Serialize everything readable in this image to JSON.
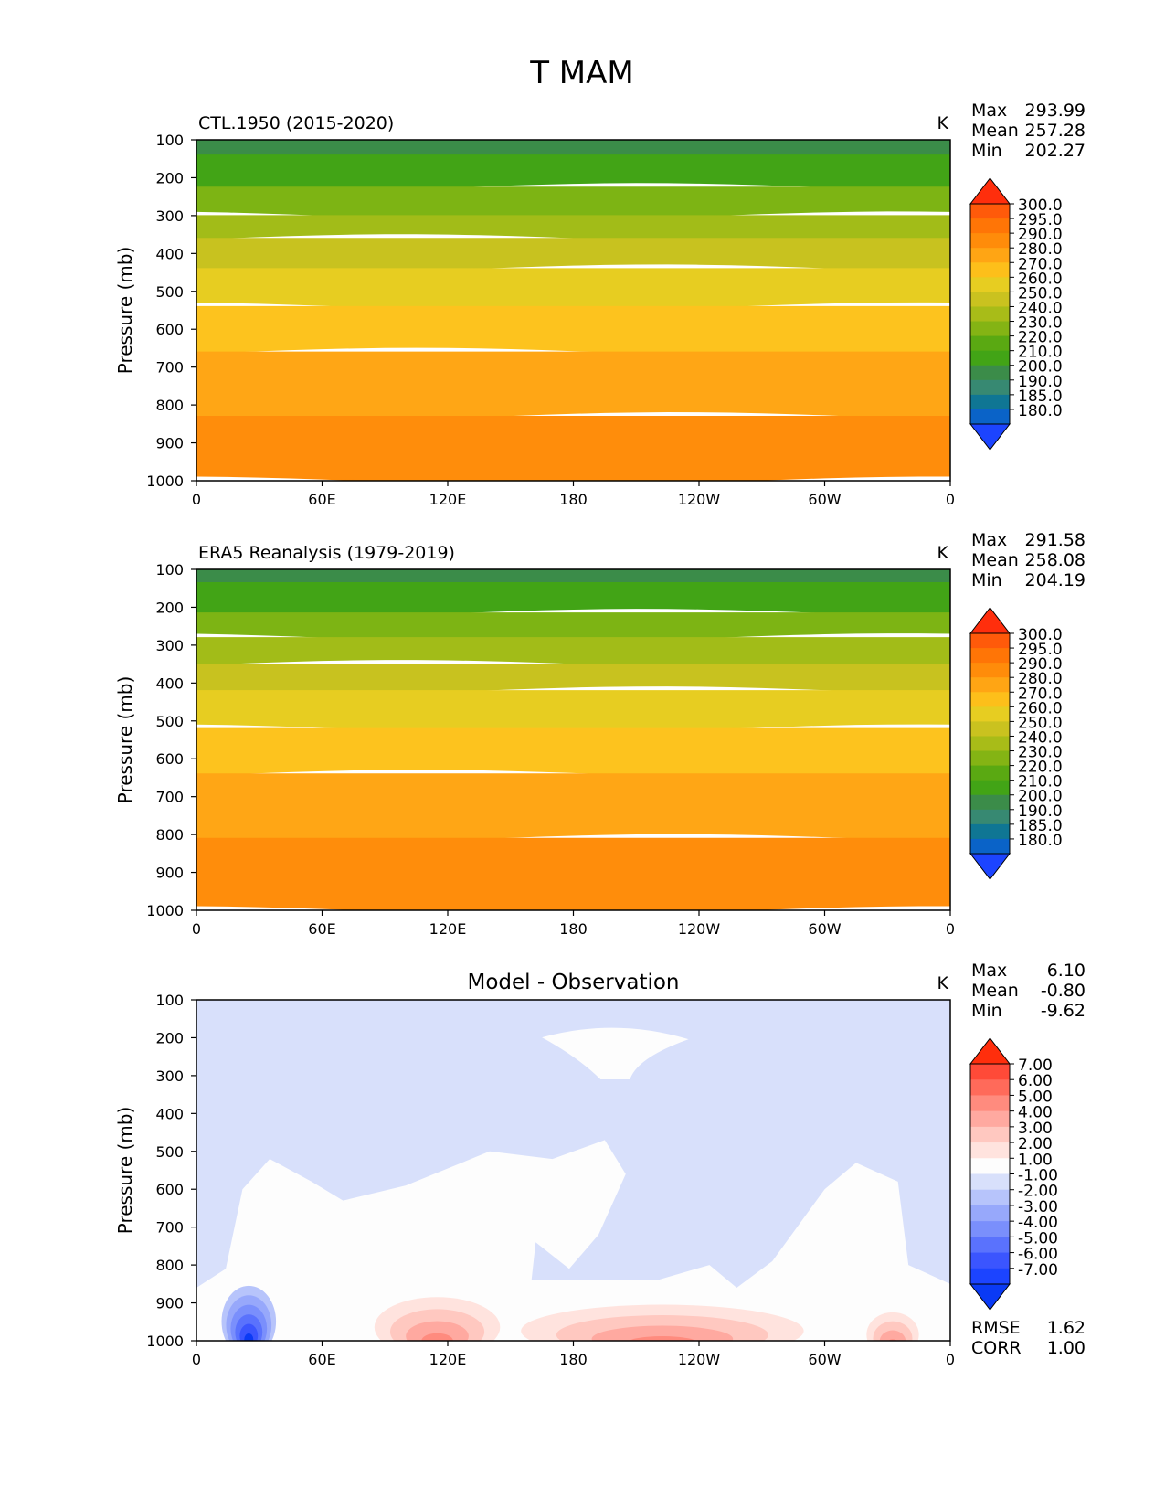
{
  "figure": {
    "title": "T MAM"
  },
  "chart_data": [
    {
      "type": "heatmap",
      "panel": "model",
      "title": "CTL.1950 (2015-2020)",
      "title_align": "left",
      "units": "K",
      "stats": [
        {
          "label": "Max",
          "value": "293.99"
        },
        {
          "label": "Mean",
          "value": "257.28"
        },
        {
          "label": "Min",
          "value": "202.27"
        }
      ],
      "ylabel": "Pressure (mb)",
      "y_ticks": [
        "100",
        "200",
        "300",
        "400",
        "500",
        "600",
        "700",
        "800",
        "900",
        "1000"
      ],
      "x_ticks": [
        "0",
        "60E",
        "120E",
        "180",
        "120W",
        "60W",
        "0"
      ],
      "ylim": [
        1000,
        100
      ],
      "colorbar": {
        "levels": [
          "300.0",
          "295.0",
          "290.0",
          "280.0",
          "270.0",
          "260.0",
          "250.0",
          "240.0",
          "230.0",
          "220.0",
          "210.0",
          "200.0",
          "190.0",
          "185.0",
          "180.0"
        ],
        "colors": [
          "#ff2e0c",
          "#ff5a0a",
          "#ff7506",
          "#ff8c0a",
          "#ffa514",
          "#fdbf1a",
          "#e7cd21",
          "#cac21f",
          "#a8bc18",
          "#84b414",
          "#5aa912",
          "#42a416",
          "#3b8c49",
          "#378972",
          "#0f7694",
          "#0a63c8",
          "#1c44ff"
        ]
      },
      "layers": [
        {
          "pressure_top": 100,
          "pressure_bottom": 140,
          "value_k": 205,
          "color": "#3b8c49"
        },
        {
          "pressure_top": 140,
          "pressure_bottom": 225,
          "value_k": 215,
          "color": "#42a416"
        },
        {
          "pressure_top": 225,
          "pressure_bottom": 300,
          "value_k": 225,
          "color": "#7db414"
        },
        {
          "pressure_top": 300,
          "pressure_bottom": 360,
          "value_k": 235,
          "color": "#a2bc18"
        },
        {
          "pressure_top": 360,
          "pressure_bottom": 440,
          "value_k": 245,
          "color": "#c8c21f"
        },
        {
          "pressure_top": 440,
          "pressure_bottom": 540,
          "value_k": 255,
          "color": "#e7cd21"
        },
        {
          "pressure_top": 540,
          "pressure_bottom": 660,
          "value_k": 265,
          "color": "#fdc31e"
        },
        {
          "pressure_top": 660,
          "pressure_bottom": 830,
          "value_k": 275,
          "color": "#ffa615"
        },
        {
          "pressure_top": 830,
          "pressure_bottom": 1000,
          "value_k": 285,
          "color": "#ff8d0b"
        }
      ]
    },
    {
      "type": "heatmap",
      "panel": "observation",
      "title": "ERA5 Reanalysis (1979-2019)",
      "title_align": "left",
      "units": "K",
      "stats": [
        {
          "label": "Max",
          "value": "291.58"
        },
        {
          "label": "Mean",
          "value": "258.08"
        },
        {
          "label": "Min",
          "value": "204.19"
        }
      ],
      "ylabel": "Pressure (mb)",
      "y_ticks": [
        "100",
        "200",
        "300",
        "400",
        "500",
        "600",
        "700",
        "800",
        "900",
        "1000"
      ],
      "x_ticks": [
        "0",
        "60E",
        "120E",
        "180",
        "120W",
        "60W",
        "0"
      ],
      "ylim": [
        1000,
        100
      ],
      "colorbar": {
        "levels": [
          "300.0",
          "295.0",
          "290.0",
          "280.0",
          "270.0",
          "260.0",
          "250.0",
          "240.0",
          "230.0",
          "220.0",
          "210.0",
          "200.0",
          "190.0",
          "185.0",
          "180.0"
        ],
        "colors": [
          "#ff2e0c",
          "#ff5a0a",
          "#ff7506",
          "#ff8c0a",
          "#ffa514",
          "#fdbf1a",
          "#e7cd21",
          "#cac21f",
          "#a8bc18",
          "#84b414",
          "#5aa912",
          "#42a416",
          "#3b8c49",
          "#378972",
          "#0f7694",
          "#0a63c8",
          "#1c44ff"
        ]
      },
      "layers": [
        {
          "pressure_top": 100,
          "pressure_bottom": 135,
          "value_k": 205,
          "color": "#3b8c49"
        },
        {
          "pressure_top": 135,
          "pressure_bottom": 215,
          "value_k": 215,
          "color": "#42a416"
        },
        {
          "pressure_top": 215,
          "pressure_bottom": 280,
          "value_k": 225,
          "color": "#7db414"
        },
        {
          "pressure_top": 280,
          "pressure_bottom": 350,
          "value_k": 235,
          "color": "#a2bc18"
        },
        {
          "pressure_top": 350,
          "pressure_bottom": 420,
          "value_k": 245,
          "color": "#c8c21f"
        },
        {
          "pressure_top": 420,
          "pressure_bottom": 520,
          "value_k": 255,
          "color": "#e7cd21"
        },
        {
          "pressure_top": 520,
          "pressure_bottom": 640,
          "value_k": 265,
          "color": "#fdc31e"
        },
        {
          "pressure_top": 640,
          "pressure_bottom": 810,
          "value_k": 275,
          "color": "#ffa615"
        },
        {
          "pressure_top": 810,
          "pressure_bottom": 1000,
          "value_k": 285,
          "color": "#ff8d0b"
        }
      ]
    },
    {
      "type": "heatmap",
      "panel": "difference",
      "title": "Model - Observation",
      "title_align": "center",
      "units": "K",
      "stats": [
        {
          "label": "Max",
          "value": "6.10"
        },
        {
          "label": "Mean",
          "value": "-0.80"
        },
        {
          "label": "Min",
          "value": "-9.62"
        }
      ],
      "extra_stats": [
        {
          "label": "RMSE",
          "value": "1.62"
        },
        {
          "label": "CORR",
          "value": "1.00"
        }
      ],
      "ylabel": "Pressure (mb)",
      "y_ticks": [
        "100",
        "200",
        "300",
        "400",
        "500",
        "600",
        "700",
        "800",
        "900",
        "1000"
      ],
      "x_ticks": [
        "0",
        "60E",
        "120E",
        "180",
        "120W",
        "60W",
        "0"
      ],
      "ylim": [
        1000,
        100
      ],
      "colorbar": {
        "levels": [
          "7.00",
          "6.00",
          "5.00",
          "4.00",
          "3.00",
          "2.00",
          "1.00",
          "-1.00",
          "-2.00",
          "-3.00",
          "-4.00",
          "-5.00",
          "-6.00",
          "-7.00"
        ],
        "colors": [
          "#ff2e0c",
          "#ff4a38",
          "#ff6a5a",
          "#ff8b7e",
          "#ffa9a0",
          "#ffc8c0",
          "#ffe3de",
          "#fdfdfd",
          "#d8e0fb",
          "#b7c4fb",
          "#97a8fb",
          "#7a8ffc",
          "#5a72fd",
          "#3b55fe",
          "#1c44ff",
          "#0a3af5"
        ]
      },
      "background": {
        "value_k": -1.5,
        "color": "#d8e0fb"
      },
      "regions": [
        {
          "name": "near-zero-upper",
          "value_k": 0,
          "color": "#fdfdfd",
          "lon": [
            165,
            235
          ],
          "pressure": [
            180,
            310
          ]
        },
        {
          "name": "near-zero-lower",
          "value_k": 0,
          "color": "#fdfdfd",
          "lon": [
            0,
            360
          ],
          "pressure": [
            480,
            1000
          ]
        },
        {
          "name": "cold-surface-core",
          "value_k": -9.6,
          "color": "#0a3af5",
          "lon": [
            12,
            38
          ],
          "pressure": [
            850,
            1000
          ]
        },
        {
          "name": "warm-surface-120E",
          "value_k": 6.1,
          "color": "#ff4a38",
          "lon": [
            85,
            145
          ],
          "pressure": [
            880,
            1000
          ]
        },
        {
          "name": "warm-surface-120W",
          "value_k": 3.5,
          "color": "#ffa9a0",
          "lon": [
            155,
            290
          ],
          "pressure": [
            900,
            1000
          ]
        },
        {
          "name": "warm-surface-30W",
          "value_k": 3.0,
          "color": "#ffc8c0",
          "lon": [
            320,
            345
          ],
          "pressure": [
            920,
            1000
          ]
        }
      ]
    }
  ]
}
